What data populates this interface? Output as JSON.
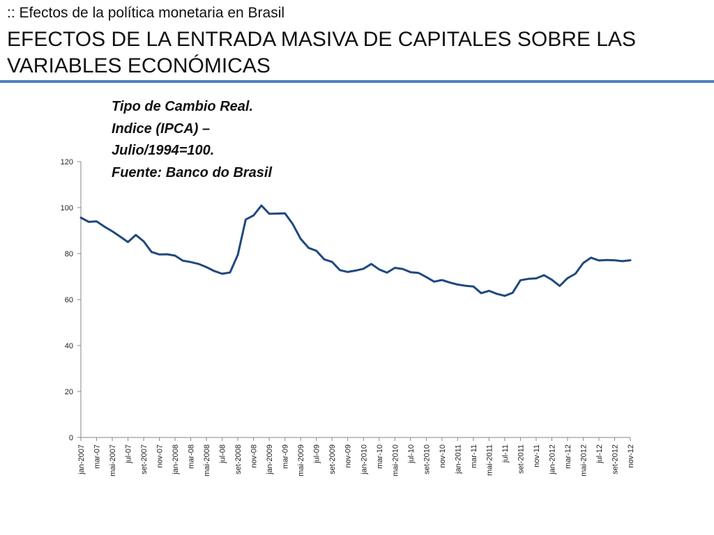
{
  "header": {
    "subtitle": ":: Efectos de la política monetaria en Brasil",
    "title": "EFECTOS DE LA ENTRADA MASIVA DE CAPITALES SOBRE LAS VARIABLES ECONÓMICAS"
  },
  "caption": {
    "lines": [
      "Tipo de Cambio Real.",
      "Indice  (IPCA) –",
      "Julio/1994=100.",
      "Fuente: Banco do Brasil"
    ]
  },
  "colors": {
    "accent_rule": "#4f81bd",
    "series": "#1f497d",
    "axis": "#868686"
  },
  "chart_data": {
    "type": "line",
    "title": "",
    "xlabel": "",
    "ylabel": "",
    "ylim": [
      0,
      120
    ],
    "yticks": [
      0,
      20,
      40,
      60,
      80,
      100,
      120
    ],
    "grid": false,
    "legend": "none",
    "x_tick_labels": [
      "jan-2007",
      "mar-07",
      "mai-2007",
      "jul-07",
      "set-2007",
      "nov-07",
      "jan-2008",
      "mar-08",
      "mai-2008",
      "jul-08",
      "set-2008",
      "nov-08",
      "jan-2009",
      "mar-09",
      "mai-2009",
      "jul-09",
      "set-2009",
      "nov-09",
      "jan-2010",
      "mar-10",
      "mai-2010",
      "jul-10",
      "set-2010",
      "nov-10",
      "jan-2011",
      "mar-11",
      "mai-2011",
      "jul-11",
      "set-2011",
      "nov-11",
      "jan-2012",
      "mar-12",
      "mai-2012",
      "jul-12",
      "set-2012",
      "nov-12"
    ],
    "series": [
      {
        "values": [
          95.6,
          93.8,
          94.0,
          91.7,
          89.7,
          87.4,
          85.0,
          88.1,
          85.3,
          80.7,
          79.6,
          79.7,
          79.1,
          76.9,
          76.3,
          75.5,
          74.1,
          72.4,
          71.2,
          71.8,
          79.5,
          94.8,
          96.6,
          100.9,
          97.3,
          97.4,
          97.5,
          92.8,
          86.4,
          82.5,
          81.2,
          77.5,
          76.4,
          72.8,
          72.0,
          72.6,
          73.4,
          75.5,
          73.1,
          71.7,
          73.8,
          73.3,
          71.9,
          71.6,
          69.8,
          67.8,
          68.5,
          67.4,
          66.5,
          66.0,
          65.7,
          62.8,
          63.8,
          62.5,
          61.6,
          62.9,
          68.4,
          69.0,
          69.2,
          70.6,
          68.6,
          65.9,
          69.3,
          71.2,
          75.9,
          78.2,
          77.0,
          77.2,
          77.1,
          76.7,
          77.1
        ]
      }
    ]
  }
}
